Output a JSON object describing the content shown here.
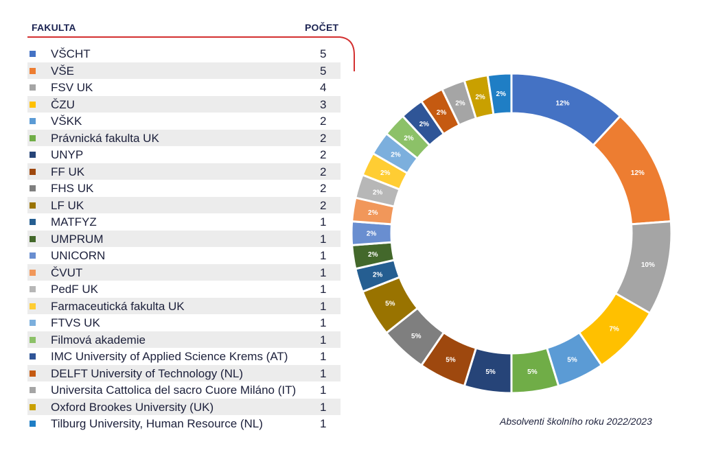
{
  "table": {
    "header_faculty": "FAKULTA",
    "header_count": "POČET",
    "rows": [
      {
        "label": "VŠCHT",
        "value": "5",
        "color": "#4472c4"
      },
      {
        "label": "VŠE",
        "value": "5",
        "color": "#ed7d31"
      },
      {
        "label": "FSV UK",
        "value": "4",
        "color": "#a5a5a5"
      },
      {
        "label": "ČZU",
        "value": "3",
        "color": "#ffc000"
      },
      {
        "label": "VŠKK",
        "value": "2",
        "color": "#5b9bd5"
      },
      {
        "label": "Právnická fakulta UK",
        "value": "2",
        "color": "#70ad47"
      },
      {
        "label": "UNYP",
        "value": "2",
        "color": "#264478"
      },
      {
        "label": "FF UK",
        "value": "2",
        "color": "#9e480e"
      },
      {
        "label": "FHS UK",
        "value": "2",
        "color": "#7f7f7f"
      },
      {
        "label": "LF UK",
        "value": "2",
        "color": "#997300"
      },
      {
        "label": "MATFYZ",
        "value": "1",
        "color": "#255e91"
      },
      {
        "label": "UMPRUM",
        "value": "1",
        "color": "#43682b"
      },
      {
        "label": "UNICORN",
        "value": "1",
        "color": "#698ed0"
      },
      {
        "label": "ČVUT",
        "value": "1",
        "color": "#f1975a"
      },
      {
        "label": "PedF UK",
        "value": "1",
        "color": "#b7b7b7"
      },
      {
        "label": "Farmaceutická fakulta UK",
        "value": "1",
        "color": "#ffcd33"
      },
      {
        "label": "FTVS UK",
        "value": "1",
        "color": "#7cafdd"
      },
      {
        "label": "Filmová akademie",
        "value": "1",
        "color": "#8cc168"
      },
      {
        "label": "IMC University of Applied Science Krems (AT)",
        "value": "1",
        "color": "#2f5597"
      },
      {
        "label": "DELFT University of Technology (NL)",
        "value": "1",
        "color": "#c55a11"
      },
      {
        "label": "Universita Cattolica del sacro Cuore Miláno (IT)",
        "value": "1",
        "color": "#a5a5a5"
      },
      {
        "label": "Oxford Brookes University (UK)",
        "value": "1",
        "color": "#c9a000"
      },
      {
        "label": "Tilburg University, Human Resource (NL)",
        "value": "1",
        "color": "#1f7ec5"
      }
    ]
  },
  "caption": "Absolventi školního roku 2022/2023",
  "chart_data": {
    "type": "pie",
    "style": "donut",
    "categories": [
      "VŠCHT",
      "VŠE",
      "FSV UK",
      "ČZU",
      "VŠKK",
      "Právnická fakulta UK",
      "UNYP",
      "FF UK",
      "FHS UK",
      "LF UK",
      "MATFYZ",
      "UMPRUM",
      "UNICORN",
      "ČVUT",
      "PedF UK",
      "Farmaceutická fakulta UK",
      "FTVS UK",
      "Filmová akademie",
      "IMC University of Applied Science Krems (AT)",
      "DELFT University of Technology (NL)",
      "Universita Cattolica del sacro Cuore Miláno (IT)",
      "Oxford Brookes University (UK)",
      "Tilburg University, Human Resource (NL)"
    ],
    "values": [
      5,
      5,
      4,
      3,
      2,
      2,
      2,
      2,
      2,
      2,
      1,
      1,
      1,
      1,
      1,
      1,
      1,
      1,
      1,
      1,
      1,
      1,
      1
    ],
    "data_labels": [
      "12%",
      "12%",
      "10%",
      "7%",
      "5%",
      "5%",
      "5%",
      "5%",
      "5%",
      "5%",
      "2%",
      "2%",
      "2%",
      "2%",
      "2%",
      "2%",
      "2%",
      "2%",
      "2%",
      "2%",
      "2%",
      "2%",
      "2%"
    ],
    "colors": [
      "#4472c4",
      "#ed7d31",
      "#a5a5a5",
      "#ffc000",
      "#5b9bd5",
      "#70ad47",
      "#264478",
      "#9e480e",
      "#7f7f7f",
      "#997300",
      "#255e91",
      "#43682b",
      "#698ed0",
      "#f1975a",
      "#b7b7b7",
      "#ffcd33",
      "#7cafdd",
      "#8cc168",
      "#2f5597",
      "#c55a11",
      "#a5a5a5",
      "#c9a000",
      "#1f7ec5"
    ],
    "start": "top"
  }
}
